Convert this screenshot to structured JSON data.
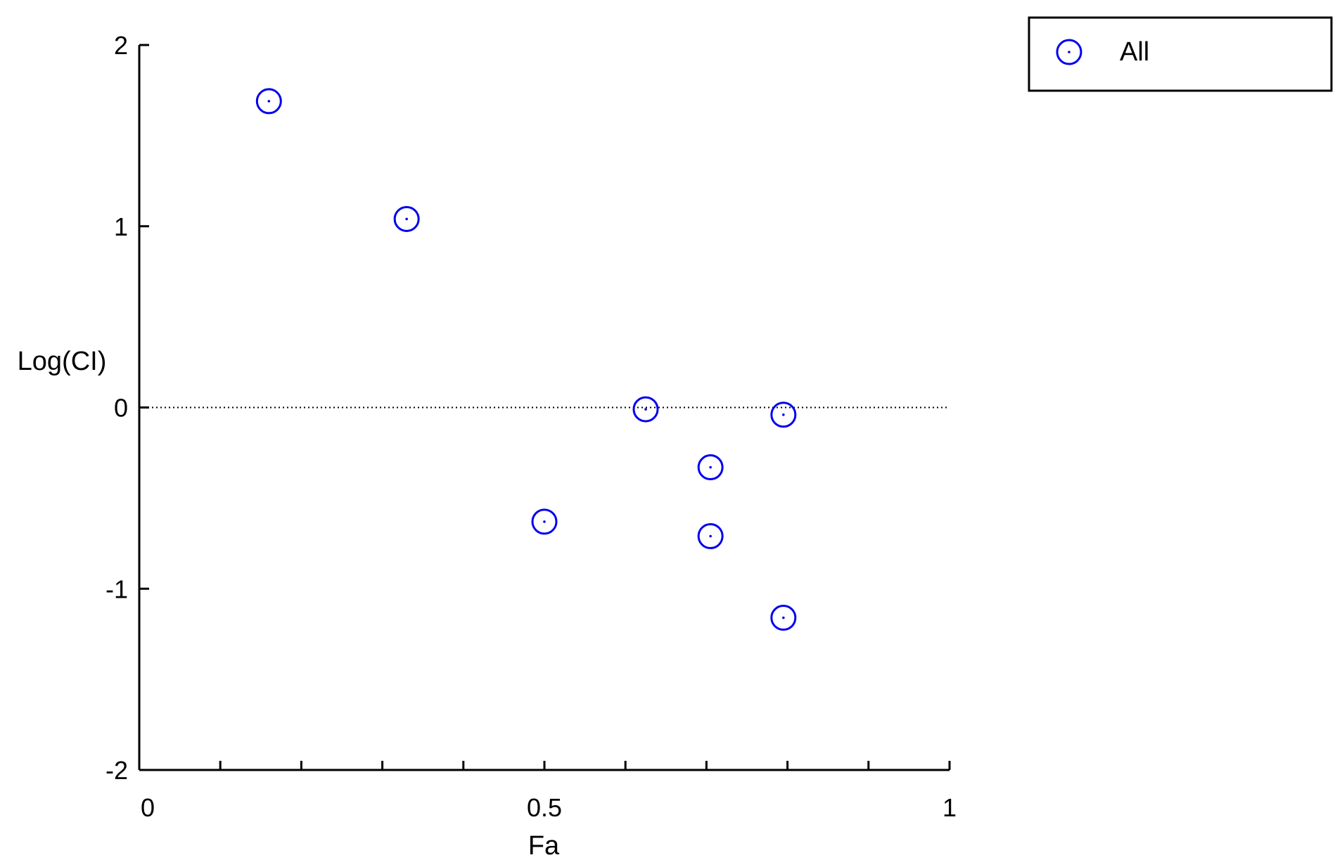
{
  "chart_data": {
    "type": "scatter",
    "title": "",
    "xlabel": "Fa",
    "ylabel": "Log(CI)",
    "xlim": [
      0,
      1
    ],
    "ylim": [
      -2,
      2
    ],
    "x_ticks": [
      {
        "value": 0,
        "label": "0"
      },
      {
        "value": 0.5,
        "label": "0.5"
      },
      {
        "value": 1,
        "label": "1"
      }
    ],
    "x_minor_ticks": [
      0.1,
      0.2,
      0.3,
      0.4,
      0.5,
      0.6,
      0.7,
      0.8,
      0.9
    ],
    "y_ticks": [
      {
        "value": 2,
        "label": "2"
      },
      {
        "value": 1,
        "label": "1"
      },
      {
        "value": 0,
        "label": "0"
      },
      {
        "value": -1,
        "label": "-1"
      },
      {
        "value": -2,
        "label": "-2"
      }
    ],
    "reference_line": {
      "y": 0,
      "style": "dotted"
    },
    "grid": false,
    "legend_position": "top-right",
    "series": [
      {
        "name": "All",
        "color": "#0000ee",
        "marker": "open-circle-dot",
        "points": [
          {
            "x": 0.16,
            "y": 1.69
          },
          {
            "x": 0.33,
            "y": 1.04
          },
          {
            "x": 0.5,
            "y": -0.63
          },
          {
            "x": 0.625,
            "y": -0.01
          },
          {
            "x": 0.705,
            "y": -0.33
          },
          {
            "x": 0.705,
            "y": -0.71
          },
          {
            "x": 0.795,
            "y": -0.04
          },
          {
            "x": 0.795,
            "y": -1.16
          }
        ]
      }
    ]
  }
}
